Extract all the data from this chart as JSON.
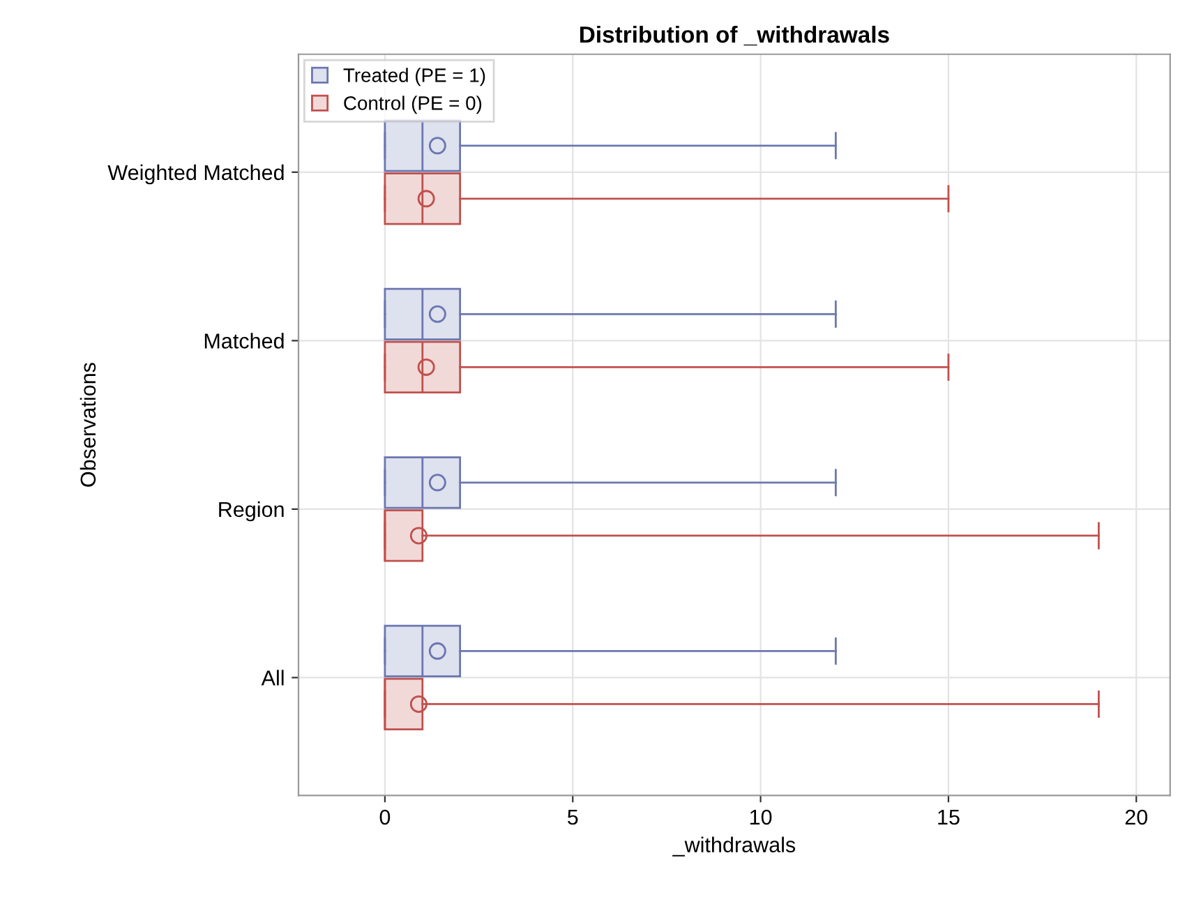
{
  "chart_data": {
    "type": "box",
    "orientation": "horizontal",
    "title": "Distribution of _withdrawals",
    "xlabel": "_withdrawals",
    "ylabel": "Observations",
    "categories": [
      "Weighted Matched",
      "Matched",
      "Region",
      "All"
    ],
    "series": [
      {
        "name": "Treated (PE = 1)",
        "color": "#6b77b0",
        "boxes": [
          {
            "low": 0,
            "q1": 0,
            "median": 1,
            "q3": 2,
            "high": 12,
            "mean": 1.4
          },
          {
            "low": 0,
            "q1": 0,
            "median": 1,
            "q3": 2,
            "high": 12,
            "mean": 1.4
          },
          {
            "low": 0,
            "q1": 0,
            "median": 1,
            "q3": 2,
            "high": 12,
            "mean": 1.4
          },
          {
            "low": 0,
            "q1": 0,
            "median": 1,
            "q3": 2,
            "high": 12,
            "mean": 1.4
          }
        ]
      },
      {
        "name": "Control (PE = 0)",
        "color": "#c0504d",
        "boxes": [
          {
            "low": 0,
            "q1": 0,
            "median": 1,
            "q3": 2,
            "high": 15,
            "mean": 1.1
          },
          {
            "low": 0,
            "q1": 0,
            "median": 1,
            "q3": 2,
            "high": 15,
            "mean": 1.1
          },
          {
            "low": 0,
            "q1": 0,
            "median": 0,
            "q3": 1,
            "high": 19,
            "mean": 0.9
          },
          {
            "low": 0,
            "q1": 0,
            "median": 0,
            "q3": 1,
            "high": 19,
            "mean": 0.9
          }
        ]
      }
    ],
    "xlim": [
      -2.3,
      20.9
    ],
    "xticks": [
      0,
      5,
      10,
      15,
      20
    ],
    "grid": true,
    "legend": "top left"
  }
}
